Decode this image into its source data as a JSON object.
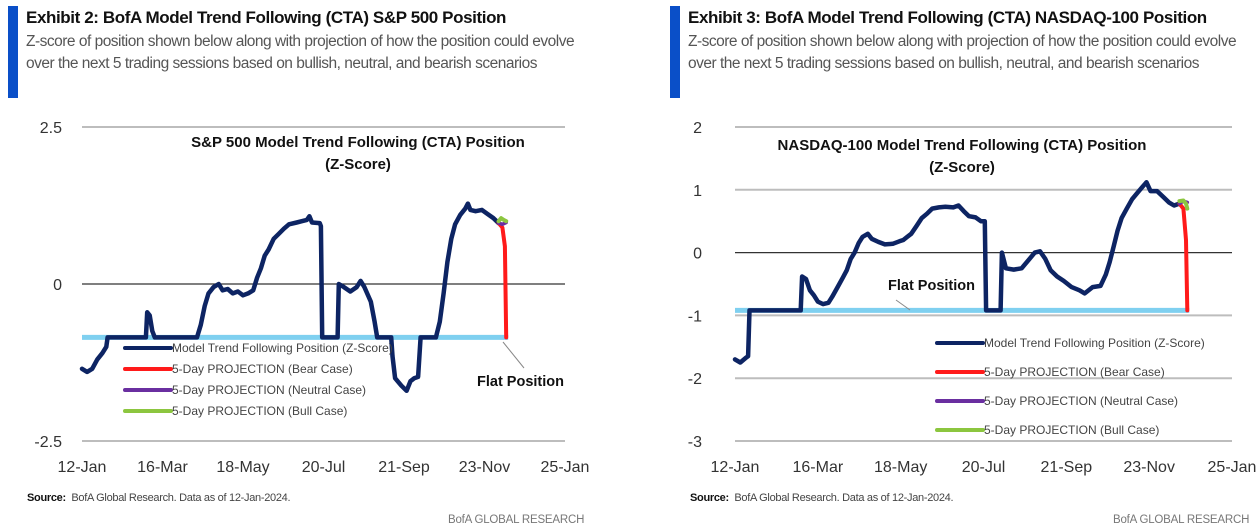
{
  "footer_brand": "BofA GLOBAL RESEARCH",
  "source_label": "Source:",
  "source_text": "BofA Global Research. Data as of 12-Jan-2024.",
  "colors": {
    "accent": "#0a4fc8",
    "model": "#0d2463",
    "bear": "#ff1a1a",
    "neutral": "#6a2fa0",
    "bull": "#8cc63f",
    "flat": "#7fd0f0",
    "zero": "#333333",
    "grid": "#bdbdbd"
  },
  "exhibits": [
    {
      "title": "Exhibit 2: BofA Model Trend Following (CTA) S&P 500 Position",
      "subtitle": "Z-score of position shown below along with projection of how the position could evolve over the next 5 trading sessions based on bullish, neutral, and bearish scenarios"
    },
    {
      "title": "Exhibit 3: BofA Model Trend Following (CTA) NASDAQ-100 Position",
      "subtitle": "Z-score of position shown below along with projection of how the position could evolve over the next 5 trading sessions based on bullish, neutral, and bearish scenarios"
    }
  ],
  "chart_data": [
    {
      "type": "line",
      "title": "S&P 500 Model Trend Following (CTA) Position (Z-Score)",
      "title_lines": [
        "S&P 500 Model Trend Following (CTA) Position",
        "(Z-Score)"
      ],
      "xlabel": "",
      "ylabel": "",
      "x_unit": "calendar days since 12-Jan-2023",
      "xlim": [
        0,
        378
      ],
      "ylim": [
        -2.5,
        2.5
      ],
      "yticks": [
        2.5,
        0,
        -2.5
      ],
      "ytick_labels": [
        "2.5",
        "0",
        "-2.5"
      ],
      "xticks": [
        0,
        63,
        126,
        189,
        252,
        315,
        378
      ],
      "xtick_labels": [
        "12-Jan",
        "16-Mar",
        "18-May",
        "20-Jul",
        "21-Sep",
        "23-Nov",
        "25-Jan"
      ],
      "grid": "horizontal",
      "legend_position": "bottom-left",
      "flat_position": -0.85,
      "annotation": "Flat Position",
      "series": [
        {
          "name": "Model Trend Following Position (Z-Score)",
          "color_key": "model",
          "points": [
            [
              0,
              -1.35
            ],
            [
              4,
              -1.4
            ],
            [
              8,
              -1.35
            ],
            [
              12,
              -1.2
            ],
            [
              16,
              -1.1
            ],
            [
              19,
              -1.0
            ],
            [
              20,
              -0.85
            ],
            [
              50,
              -0.85
            ],
            [
              51,
              -0.45
            ],
            [
              53,
              -0.5
            ],
            [
              55,
              -0.75
            ],
            [
              57,
              -0.85
            ],
            [
              90,
              -0.85
            ],
            [
              93,
              -0.65
            ],
            [
              96,
              -0.35
            ],
            [
              99,
              -0.15
            ],
            [
              103,
              -0.05
            ],
            [
              107,
              0.0
            ],
            [
              110,
              -0.1
            ],
            [
              114,
              -0.08
            ],
            [
              118,
              -0.15
            ],
            [
              122,
              -0.12
            ],
            [
              126,
              -0.18
            ],
            [
              130,
              -0.15
            ],
            [
              134,
              -0.1
            ],
            [
              137,
              0.1
            ],
            [
              140,
              0.25
            ],
            [
              143,
              0.45
            ],
            [
              146,
              0.55
            ],
            [
              150,
              0.72
            ],
            [
              154,
              0.8
            ],
            [
              158,
              0.88
            ],
            [
              162,
              0.95
            ],
            [
              168,
              0.98
            ],
            [
              172,
              1.0
            ],
            [
              176,
              1.02
            ],
            [
              178,
              1.08
            ],
            [
              180,
              0.98
            ],
            [
              186,
              0.97
            ],
            [
              187,
              0.92
            ],
            [
              188,
              -0.85
            ],
            [
              200,
              -0.85
            ],
            [
              201,
              0.0
            ],
            [
              205,
              -0.05
            ],
            [
              210,
              -0.12
            ],
            [
              215,
              -0.05
            ],
            [
              218,
              0.05
            ],
            [
              221,
              -0.05
            ],
            [
              226,
              -0.28
            ],
            [
              229,
              -0.6
            ],
            [
              231,
              -0.85
            ],
            [
              242,
              -0.85
            ],
            [
              243,
              -1.15
            ],
            [
              245,
              -1.5
            ],
            [
              250,
              -1.62
            ],
            [
              254,
              -1.7
            ],
            [
              257,
              -1.55
            ],
            [
              260,
              -1.5
            ],
            [
              263,
              -1.48
            ],
            [
              265,
              -0.85
            ],
            [
              277,
              -0.85
            ],
            [
              280,
              -0.6
            ],
            [
              283,
              -0.15
            ],
            [
              286,
              0.35
            ],
            [
              289,
              0.72
            ],
            [
              292,
              0.95
            ],
            [
              296,
              1.1
            ],
            [
              300,
              1.2
            ],
            [
              302,
              1.28
            ],
            [
              304,
              1.18
            ],
            [
              308,
              1.16
            ],
            [
              313,
              1.18
            ],
            [
              317,
              1.12
            ],
            [
              322,
              1.05
            ],
            [
              326,
              0.97
            ]
          ]
        },
        {
          "name": "5-Day PROJECTION (Bear Case)",
          "color_key": "bear",
          "points": [
            [
              326,
              0.97
            ],
            [
              329,
              0.9
            ],
            [
              331,
              0.6
            ],
            [
              332,
              -0.85
            ]
          ]
        },
        {
          "name": "5-Day PROJECTION (Neutral Case)",
          "color_key": "neutral",
          "points": [
            [
              326,
              0.97
            ],
            [
              329,
              0.95
            ],
            [
              332,
              0.98
            ]
          ]
        },
        {
          "name": "5-Day PROJECTION (Bull Case)",
          "color_key": "bull",
          "points": [
            [
              326,
              1.0
            ],
            [
              328,
              1.05
            ],
            [
              330,
              1.02
            ],
            [
              332,
              1.0
            ]
          ]
        }
      ]
    },
    {
      "type": "line",
      "title": "NASDAQ-100 Model Trend Following (CTA) Position (Z-Score)",
      "title_lines": [
        "NASDAQ-100 Model Trend Following (CTA) Position",
        "(Z-Score)"
      ],
      "xlabel": "",
      "ylabel": "",
      "x_unit": "calendar days since 12-Jan-2023",
      "xlim": [
        0,
        378
      ],
      "ylim": [
        -3,
        2
      ],
      "yticks": [
        2,
        1,
        0,
        -1,
        -2,
        -3
      ],
      "ytick_labels": [
        "2",
        "1",
        "0",
        "-1",
        "-2",
        "-3"
      ],
      "xticks": [
        0,
        63,
        126,
        189,
        252,
        315,
        378
      ],
      "xtick_labels": [
        "12-Jan",
        "16-Mar",
        "18-May",
        "20-Jul",
        "21-Sep",
        "23-Nov",
        "25-Jan"
      ],
      "grid": "horizontal",
      "legend_position": "bottom-right",
      "flat_position": -0.92,
      "annotation": "Flat Position",
      "series": [
        {
          "name": "Model Trend Following Position (Z-Score)",
          "color_key": "model",
          "points": [
            [
              0,
              -1.7
            ],
            [
              4,
              -1.75
            ],
            [
              8,
              -1.68
            ],
            [
              10,
              -1.65
            ],
            [
              11,
              -0.92
            ],
            [
              50,
              -0.92
            ],
            [
              51,
              -0.38
            ],
            [
              54,
              -0.42
            ],
            [
              57,
              -0.6
            ],
            [
              60,
              -0.68
            ],
            [
              63,
              -0.78
            ],
            [
              67,
              -0.82
            ],
            [
              71,
              -0.8
            ],
            [
              74,
              -0.7
            ],
            [
              78,
              -0.55
            ],
            [
              82,
              -0.4
            ],
            [
              85,
              -0.28
            ],
            [
              88,
              -0.1
            ],
            [
              91,
              0.0
            ],
            [
              94,
              0.15
            ],
            [
              97,
              0.25
            ],
            [
              101,
              0.3
            ],
            [
              104,
              0.22
            ],
            [
              109,
              0.17
            ],
            [
              114,
              0.13
            ],
            [
              120,
              0.14
            ],
            [
              125,
              0.18
            ],
            [
              128,
              0.2
            ],
            [
              131,
              0.25
            ],
            [
              134,
              0.3
            ],
            [
              138,
              0.42
            ],
            [
              142,
              0.55
            ],
            [
              146,
              0.62
            ],
            [
              150,
              0.7
            ],
            [
              155,
              0.72
            ],
            [
              160,
              0.73
            ],
            [
              166,
              0.72
            ],
            [
              170,
              0.75
            ],
            [
              174,
              0.66
            ],
            [
              178,
              0.58
            ],
            [
              183,
              0.56
            ],
            [
              187,
              0.5
            ],
            [
              190,
              0.5
            ],
            [
              191,
              -0.92
            ],
            [
              202,
              -0.92
            ],
            [
              203,
              0.0
            ],
            [
              206,
              -0.25
            ],
            [
              212,
              -0.27
            ],
            [
              218,
              -0.25
            ],
            [
              224,
              -0.1
            ],
            [
              228,
              0.0
            ],
            [
              232,
              0.02
            ],
            [
              236,
              -0.1
            ],
            [
              240,
              -0.28
            ],
            [
              245,
              -0.38
            ],
            [
              250,
              -0.45
            ],
            [
              256,
              -0.55
            ],
            [
              262,
              -0.6
            ],
            [
              266,
              -0.65
            ],
            [
              272,
              -0.55
            ],
            [
              278,
              -0.53
            ],
            [
              282,
              -0.35
            ],
            [
              285,
              -0.15
            ],
            [
              288,
              0.1
            ],
            [
              291,
              0.35
            ],
            [
              294,
              0.55
            ],
            [
              298,
              0.7
            ],
            [
              302,
              0.85
            ],
            [
              306,
              0.95
            ],
            [
              310,
              1.05
            ],
            [
              313,
              1.12
            ],
            [
              316,
              0.98
            ],
            [
              321,
              0.98
            ],
            [
              326,
              0.88
            ],
            [
              330,
              0.8
            ],
            [
              334,
              0.75
            ],
            [
              338,
              0.78
            ]
          ]
        },
        {
          "name": "5-Day PROJECTION (Bear Case)",
          "color_key": "bear",
          "points": [
            [
              338,
              0.78
            ],
            [
              341,
              0.7
            ],
            [
              343,
              0.2
            ],
            [
              344,
              -0.92
            ]
          ]
        },
        {
          "name": "5-Day PROJECTION (Neutral Case)",
          "color_key": "neutral",
          "points": [
            [
              338,
              0.78
            ],
            [
              341,
              0.82
            ],
            [
              344,
              0.8
            ]
          ]
        },
        {
          "name": "5-Day PROJECTION (Bull Case)",
          "color_key": "bull",
          "points": [
            [
              338,
              0.82
            ],
            [
              341,
              0.83
            ],
            [
              343,
              0.78
            ],
            [
              344,
              0.7
            ]
          ]
        }
      ]
    }
  ]
}
